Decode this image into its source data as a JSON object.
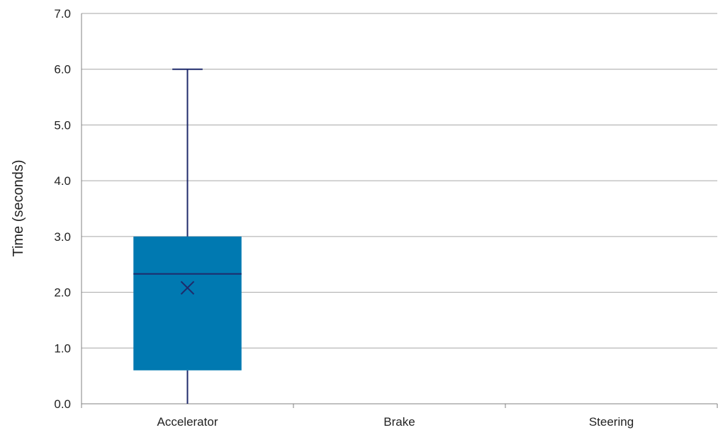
{
  "chart_data": {
    "type": "box",
    "title": "",
    "xlabel": "",
    "ylabel": "Time (seconds)",
    "ylim": [
      0,
      7
    ],
    "y_ticks": [
      "0.0",
      "1.0",
      "2.0",
      "3.0",
      "4.0",
      "5.0",
      "6.0",
      "7.0"
    ],
    "grid": true,
    "categories": [
      "Accelerator",
      "Brake",
      "Steering"
    ],
    "boxes": [
      {
        "category": "Accelerator",
        "min": 0.0,
        "q1": 0.6,
        "median": 2.33,
        "q3": 3.0,
        "max": 6.0,
        "mean": 2.08
      },
      {
        "category": "Brake",
        "min": null,
        "q1": null,
        "median": null,
        "q3": null,
        "max": null,
        "mean": null
      },
      {
        "category": "Steering",
        "min": null,
        "q1": null,
        "median": null,
        "q3": null,
        "max": null,
        "mean": null
      }
    ],
    "colors": {
      "box_fill": "#0079b1",
      "whisker": "#1f2a6b",
      "gridline": "#a6a6a6",
      "axis": "#808080"
    }
  }
}
